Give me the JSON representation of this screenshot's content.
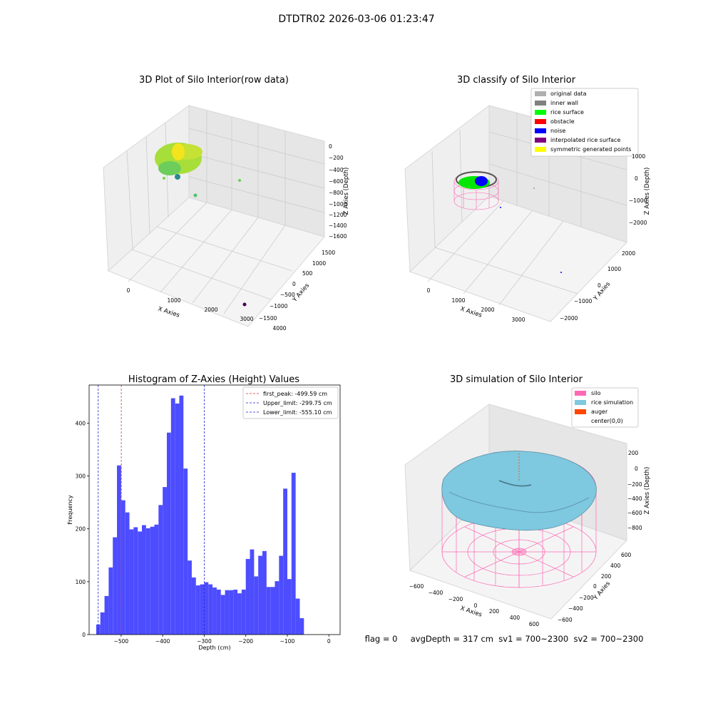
{
  "suptitle": "DTDTR02 2026-03-06 01:23:47",
  "status_line": "flag = 0     avgDepth = 317 cm  sv1 = 700~2300  sv2 = 700~2300",
  "colors": {
    "hist_bar": "#4d4dff",
    "first_peak": "#e03030",
    "limit": "#2020d0",
    "silo": "#ff69b4",
    "rice_sim": "#7ec8e0",
    "auger": "#ff4500",
    "gray_data": "#b0b0b0",
    "inner_wall": "#808080",
    "rice_surface": "#00ff00",
    "obstacle": "#ff0000",
    "noise": "#0000ff",
    "interp": "#800080",
    "sym": "#ffff00"
  },
  "chart_data": [
    {
      "type": "scatter",
      "title": "3D Plot of Silo Interior(row data)",
      "xlabel": "X Axies",
      "ylabel": "Y Axies",
      "zlabel": "Z Axies (Depth)",
      "x_ticks": [
        "0",
        "1000",
        "2000",
        "3000",
        "4000"
      ],
      "y_ticks": [
        "1500",
        "1000",
        "500",
        "0",
        "−500",
        "−1000",
        "−1500"
      ],
      "z_ticks": [
        "0",
        "−200",
        "−400",
        "−600",
        "−800",
        "−1000",
        "−1200",
        "−1400",
        "−1600"
      ],
      "note": "point cloud colored by depth (viridis)"
    },
    {
      "type": "scatter",
      "title": "3D classify of Silo Interior",
      "xlabel": "X Axies",
      "ylabel": "Y Axies",
      "zlabel": "Z Axies (Depth)",
      "x_ticks": [
        "0",
        "1000",
        "2000",
        "3000"
      ],
      "y_ticks": [
        "2000",
        "1000",
        "0",
        "−1000",
        "−2000"
      ],
      "z_ticks": [
        "1000",
        "0",
        "−1000",
        "−2000"
      ],
      "legend": [
        "original data",
        "inner wall",
        "rice surface",
        "obstacle",
        "noise",
        "interpolated rice surface",
        "symmetric generated points"
      ],
      "legend_position": "top-right"
    },
    {
      "type": "bar",
      "title": "Histogram of Z-Axies (Height) Values",
      "xlabel": "Depth (cm)",
      "ylabel": "Frequency",
      "x_ticks": [
        "−500",
        "−400",
        "−300",
        "−200",
        "−100",
        "0"
      ],
      "y_ticks": [
        "0",
        "100",
        "200",
        "300",
        "400"
      ],
      "xlim": [
        -577,
        27
      ],
      "ylim": [
        0,
        472
      ],
      "bin_start": -560,
      "bin_width": 10,
      "values": [
        19,
        42,
        73,
        127,
        184,
        320,
        254,
        231,
        199,
        203,
        195,
        207,
        201,
        204,
        208,
        245,
        279,
        382,
        447,
        437,
        452,
        314,
        140,
        108,
        93,
        95,
        99,
        95,
        89,
        85,
        75,
        84,
        84,
        85,
        78,
        85,
        143,
        161,
        110,
        149,
        158,
        90,
        90,
        101,
        149,
        276,
        105,
        306,
        68,
        31
      ],
      "reference_lines": [
        {
          "label": "first_peak: -499.59 cm",
          "value": -499.59,
          "color": "red"
        },
        {
          "label": "Upper_limit: -299.75 cm",
          "value": -299.75,
          "color": "blue"
        },
        {
          "label": "Lower_limit: -555.10 cm",
          "value": -555.1,
          "color": "blue"
        }
      ],
      "legend_position": "top-right"
    },
    {
      "type": "area",
      "title": "3D simulation of Silo Interior",
      "xlabel": "X Axies",
      "ylabel": "Y Axies",
      "zlabel": "Z Axies (Depth)",
      "x_ticks": [
        "−600",
        "−400",
        "−200",
        "0",
        "200",
        "400",
        "600"
      ],
      "y_ticks": [
        "600",
        "400",
        "200",
        "0",
        "−200",
        "−400",
        "−600"
      ],
      "z_ticks": [
        "200",
        "0",
        "−200",
        "−400",
        "−600",
        "−800"
      ],
      "legend": [
        "silo",
        "rice simulation",
        "auger",
        "center(0,0)"
      ],
      "legend_position": "top-right"
    }
  ]
}
